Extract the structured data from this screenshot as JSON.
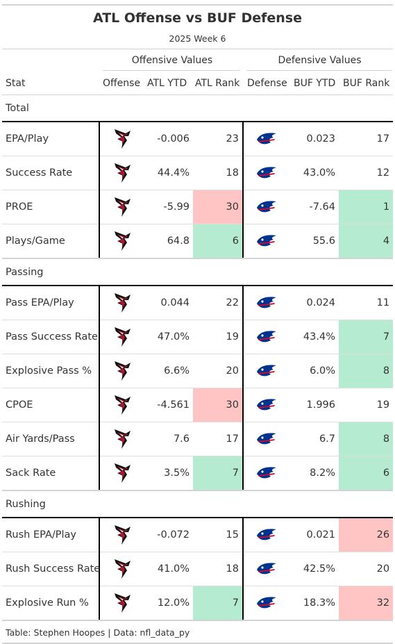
{
  "title": "ATL Offense vs BUF Defense",
  "subtitle": "2025 Week 6",
  "spanners": {
    "offense": "Offensive Values",
    "defense": "Defensive Values"
  },
  "columns": [
    "Stat",
    "Offense",
    "ATL YTD",
    "ATL Rank",
    "Defense",
    "BUF YTD",
    "BUF Rank"
  ],
  "colors": {
    "red_highlight": "#ffc5c5",
    "green_highlight": "#b5ebd0"
  },
  "icons": {
    "offense": "falcons-logo-icon",
    "defense": "bills-logo-icon"
  },
  "groups": [
    {
      "label": "Total",
      "rows": [
        {
          "stat": "EPA/Play",
          "atl_ytd": "-0.006",
          "atl_rank": "23",
          "buf_ytd": "0.023",
          "buf_rank": "17",
          "atl_hl": "",
          "buf_hl": ""
        },
        {
          "stat": "Success Rate",
          "atl_ytd": "44.4%",
          "atl_rank": "18",
          "buf_ytd": "43.0%",
          "buf_rank": "12",
          "atl_hl": "",
          "buf_hl": ""
        },
        {
          "stat": "PROE",
          "atl_ytd": "-5.99",
          "atl_rank": "30",
          "buf_ytd": "-7.64",
          "buf_rank": "1",
          "atl_hl": "red",
          "buf_hl": "green"
        },
        {
          "stat": "Plays/Game",
          "atl_ytd": "64.8",
          "atl_rank": "6",
          "buf_ytd": "55.6",
          "buf_rank": "4",
          "atl_hl": "green",
          "buf_hl": "green"
        }
      ]
    },
    {
      "label": "Passing",
      "rows": [
        {
          "stat": "Pass EPA/Play",
          "atl_ytd": "0.044",
          "atl_rank": "22",
          "buf_ytd": "0.024",
          "buf_rank": "11",
          "atl_hl": "",
          "buf_hl": ""
        },
        {
          "stat": "Pass Success Rate",
          "atl_ytd": "47.0%",
          "atl_rank": "19",
          "buf_ytd": "43.4%",
          "buf_rank": "7",
          "atl_hl": "",
          "buf_hl": "green"
        },
        {
          "stat": "Explosive Pass %",
          "atl_ytd": "6.6%",
          "atl_rank": "20",
          "buf_ytd": "6.0%",
          "buf_rank": "8",
          "atl_hl": "",
          "buf_hl": "green"
        },
        {
          "stat": "CPOE",
          "atl_ytd": "-4.561",
          "atl_rank": "30",
          "buf_ytd": "1.996",
          "buf_rank": "19",
          "atl_hl": "red",
          "buf_hl": ""
        },
        {
          "stat": "Air Yards/Pass",
          "atl_ytd": "7.6",
          "atl_rank": "17",
          "buf_ytd": "6.7",
          "buf_rank": "8",
          "atl_hl": "",
          "buf_hl": "green"
        },
        {
          "stat": "Sack Rate",
          "atl_ytd": "3.5%",
          "atl_rank": "7",
          "buf_ytd": "8.2%",
          "buf_rank": "6",
          "atl_hl": "green",
          "buf_hl": "green"
        }
      ]
    },
    {
      "label": "Rushing",
      "rows": [
        {
          "stat": "Rush EPA/Play",
          "atl_ytd": "-0.072",
          "atl_rank": "15",
          "buf_ytd": "0.021",
          "buf_rank": "26",
          "atl_hl": "",
          "buf_hl": "red"
        },
        {
          "stat": "Rush Success Rate",
          "atl_ytd": "41.0%",
          "atl_rank": "18",
          "buf_ytd": "42.5%",
          "buf_rank": "20",
          "atl_hl": "",
          "buf_hl": ""
        },
        {
          "stat": "Explosive Run %",
          "atl_ytd": "12.0%",
          "atl_rank": "7",
          "buf_ytd": "18.3%",
          "buf_rank": "32",
          "atl_hl": "green",
          "buf_hl": "red"
        }
      ]
    }
  ],
  "source_note": "Table: Stephen Hoopes | Data: nfl_data_py"
}
